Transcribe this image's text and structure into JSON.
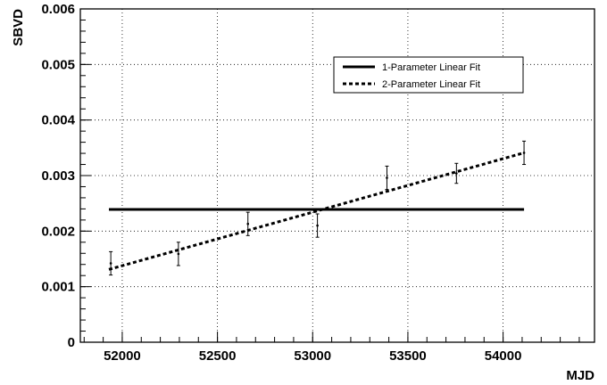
{
  "chart_data": {
    "type": "scatter",
    "xlabel": "MJD",
    "ylabel": "SBVD",
    "xlim": [
      51780,
      54480
    ],
    "ylim": [
      0,
      0.006
    ],
    "x_ticks": [
      52000,
      52500,
      53000,
      53500,
      54000
    ],
    "y_ticks": [
      "0",
      "0.001",
      "0.002",
      "0.003",
      "0.004",
      "0.005",
      "0.006"
    ],
    "grid": true,
    "legend_position": "top-right",
    "series": [
      {
        "type": "scatter_errorbar",
        "points": [
          {
            "x": 51940,
            "y": 0.00142,
            "err": 0.00021
          },
          {
            "x": 52295,
            "y": 0.00159,
            "err": 0.00021
          },
          {
            "x": 52660,
            "y": 0.00213,
            "err": 0.00021
          },
          {
            "x": 53025,
            "y": 0.0021,
            "err": 0.00021
          },
          {
            "x": 53390,
            "y": 0.00296,
            "err": 0.00021
          },
          {
            "x": 53755,
            "y": 0.00304,
            "err": 0.00018
          },
          {
            "x": 54110,
            "y": 0.00341,
            "err": 0.00021
          }
        ]
      },
      {
        "name": "1-Parameter Linear Fit",
        "type": "line",
        "style": "solid",
        "x": [
          51930,
          54110
        ],
        "y": [
          0.00239,
          0.00239
        ]
      },
      {
        "name": "2-Parameter Linear Fit",
        "type": "line",
        "style": "dashed",
        "x": [
          51930,
          54110
        ],
        "y": [
          0.00131,
          0.00341
        ]
      }
    ]
  }
}
